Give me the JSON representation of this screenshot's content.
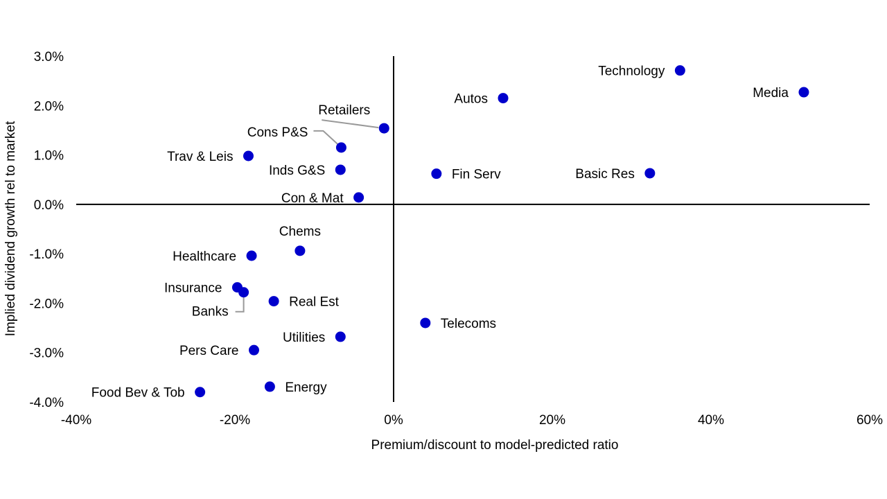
{
  "chart_data": {
    "type": "scatter",
    "title": "",
    "xlabel": "Premium/discount to model-predicted ratio",
    "ylabel": "Implied dividend growth rel to market",
    "xlim": [
      -40,
      60
    ],
    "ylim": [
      -4.0,
      3.0
    ],
    "x_ticks": [
      -40,
      -20,
      0,
      20,
      40,
      60
    ],
    "x_tick_labels": [
      "-40%",
      "-20%",
      "0%",
      "20%",
      "40%",
      "60%"
    ],
    "y_ticks": [
      3.0,
      2.0,
      1.0,
      0.0,
      -1.0,
      -2.0,
      -3.0,
      -4.0
    ],
    "y_tick_labels": [
      "3.0%",
      "2.0%",
      "1.0%",
      "0.0%",
      "-1.0%",
      "-2.0%",
      "-3.0%",
      "-4.0%"
    ],
    "grid": false,
    "legend": "none",
    "marker_color": "#0000CC",
    "points": [
      {
        "label": "Technology",
        "x": 36.1,
        "y": 2.71,
        "label_pos": "left"
      },
      {
        "label": "Media",
        "x": 51.7,
        "y": 2.27,
        "label_pos": "left"
      },
      {
        "label": "Autos",
        "x": 13.8,
        "y": 2.15,
        "label_pos": "left"
      },
      {
        "label": "Retailers",
        "x": -1.2,
        "y": 1.54,
        "label_pos": "leader-upleft"
      },
      {
        "label": "Cons P&S",
        "x": -6.6,
        "y": 1.15,
        "label_pos": "leader-left"
      },
      {
        "label": "Trav & Leis",
        "x": -18.3,
        "y": 0.98,
        "label_pos": "left"
      },
      {
        "label": "Inds G&S",
        "x": -6.7,
        "y": 0.7,
        "label_pos": "left"
      },
      {
        "label": "Fin Serv",
        "x": 5.4,
        "y": 0.62,
        "label_pos": "right"
      },
      {
        "label": "Basic Res",
        "x": 32.3,
        "y": 0.63,
        "label_pos": "left"
      },
      {
        "label": "Con & Mat",
        "x": -4.4,
        "y": 0.14,
        "label_pos": "left"
      },
      {
        "label": "Chems",
        "x": -11.8,
        "y": -0.94,
        "label_pos": "above"
      },
      {
        "label": "Healthcare",
        "x": -17.9,
        "y": -1.04,
        "label_pos": "left"
      },
      {
        "label": "Insurance",
        "x": -19.7,
        "y": -1.68,
        "label_pos": "left"
      },
      {
        "label": "Banks",
        "x": -18.9,
        "y": -1.78,
        "label_pos": "leader-below"
      },
      {
        "label": "Real Est",
        "x": -15.1,
        "y": -1.96,
        "label_pos": "right"
      },
      {
        "label": "Telecoms",
        "x": 4.0,
        "y": -2.4,
        "label_pos": "right"
      },
      {
        "label": "Utilities",
        "x": -6.7,
        "y": -2.68,
        "label_pos": "left"
      },
      {
        "label": "Pers Care",
        "x": -17.6,
        "y": -2.95,
        "label_pos": "left"
      },
      {
        "label": "Energy",
        "x": -15.6,
        "y": -3.69,
        "label_pos": "right"
      },
      {
        "label": "Food Bev & Tob",
        "x": -24.4,
        "y": -3.8,
        "label_pos": "left"
      }
    ]
  }
}
